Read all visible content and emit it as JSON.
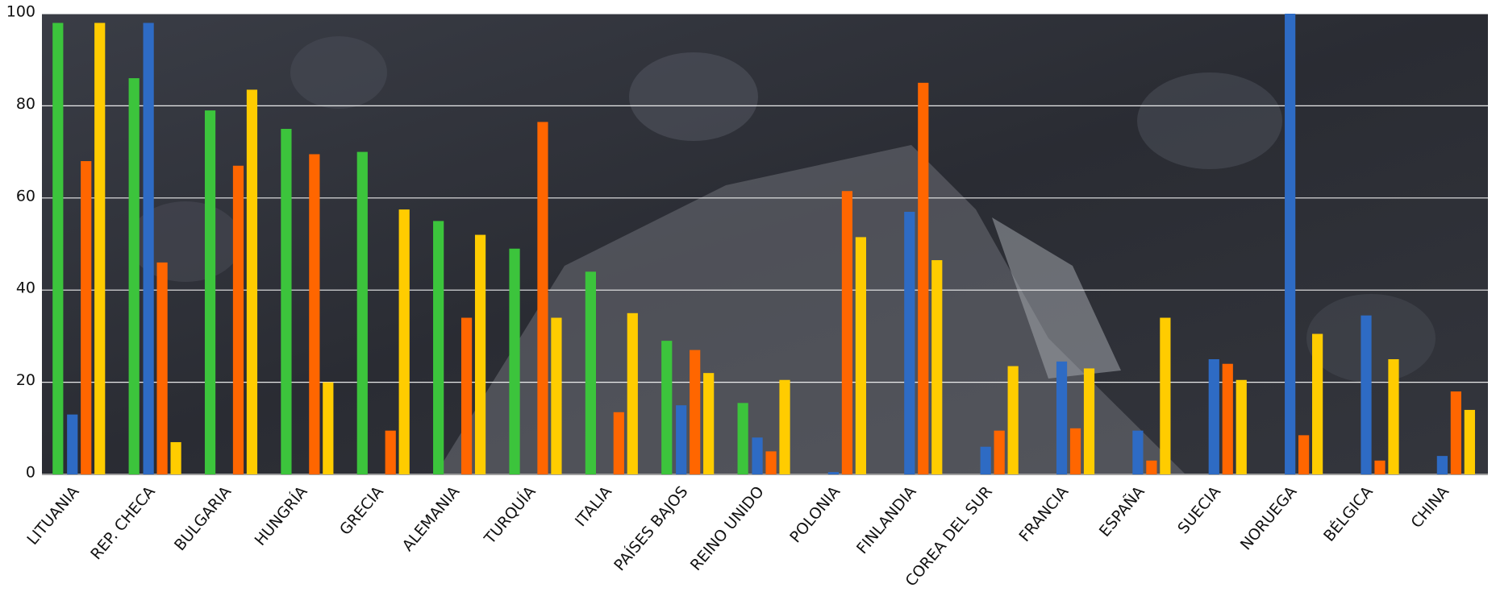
{
  "chart_data": {
    "type": "bar",
    "categories": [
      "LITUANIA",
      "REP. CHECA",
      "BULGARIA",
      "HUNGRÍA",
      "GRECIA",
      "ALEMANIA",
      "TURQUÍA",
      "ITALIA",
      "PAÍSES BAJOS",
      "REINO UNIDO",
      "POLONIA",
      "FINLANDIA",
      "COREA DEL SUR",
      "FRANCIA",
      "ESPAÑA",
      "SUECIA",
      "NORUEGA",
      "BÉLGICA",
      "CHINA"
    ],
    "series": [
      {
        "color": "#3cc43c",
        "values": [
          98,
          86,
          79,
          75,
          70,
          55,
          49,
          44,
          29,
          15.5,
          0,
          0,
          0,
          0,
          0,
          0,
          0,
          0,
          0
        ]
      },
      {
        "color": "#2e6bc4",
        "values": [
          13,
          98,
          0,
          0,
          0,
          0,
          0,
          0,
          15,
          8,
          0.5,
          57,
          6,
          24.5,
          9.5,
          25,
          100,
          34.5,
          4
        ]
      },
      {
        "color": "#ff6600",
        "values": [
          68,
          46,
          67,
          69.5,
          9.5,
          34,
          76.5,
          13.5,
          27,
          5,
          61.5,
          85,
          9.5,
          10,
          3,
          24,
          8.5,
          3,
          18
        ]
      },
      {
        "color": "#ffcc00",
        "values": [
          98,
          7,
          83.5,
          20,
          57.5,
          52,
          34,
          35,
          22,
          20.5,
          51.5,
          46.5,
          23.5,
          23,
          34,
          20.5,
          30.5,
          25,
          14
        ]
      }
    ],
    "ylim": [
      0,
      100
    ],
    "yticks": [
      0,
      20,
      40,
      60,
      80,
      100
    ],
    "grid": true
  }
}
